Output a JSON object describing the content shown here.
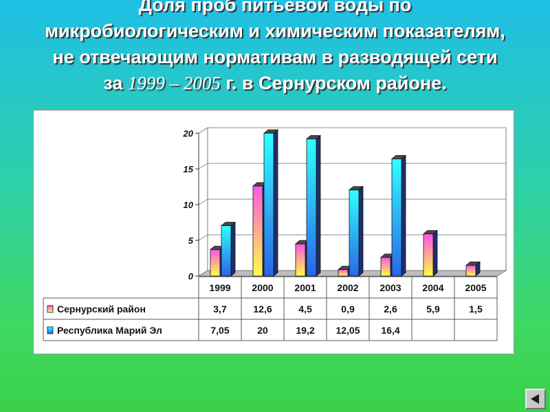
{
  "title": {
    "part1": "Доля проб питьевой воды по микробиологическим и химическим показателям, не отвечающим нормативам в разводящей сети за ",
    "years": "1999 – 2005",
    "part2": " г. в Сернурском районе."
  },
  "colors": {
    "series1_top": "#ff55e6",
    "series1_bottom": "#ffff40",
    "series2_top": "#30ffff",
    "series2_bottom": "#2a66e8"
  },
  "nav": {
    "icon": "back-arrow-icon"
  },
  "chart_data": {
    "type": "bar",
    "categories": [
      "1999",
      "2000",
      "2001",
      "2002",
      "2003",
      "2004",
      "2005"
    ],
    "series": [
      {
        "name": "Сернурский район",
        "values": [
          3.7,
          12.6,
          4.5,
          0.9,
          2.6,
          5.9,
          1.5
        ],
        "labels": [
          "3,7",
          "12,6",
          "4,5",
          "0,9",
          "2,6",
          "5,9",
          "1,5"
        ]
      },
      {
        "name": "Республика Марий Эл",
        "values": [
          7.05,
          20,
          19.2,
          12.05,
          16.4,
          null,
          null
        ],
        "labels": [
          "7,05",
          "20",
          "19,2",
          "12,05",
          "16,4",
          "",
          ""
        ]
      }
    ],
    "yticks": [
      "0",
      "5",
      "10",
      "15",
      "20"
    ],
    "ylim": [
      0,
      20
    ],
    "grid": true,
    "legend": "data-table-below"
  }
}
